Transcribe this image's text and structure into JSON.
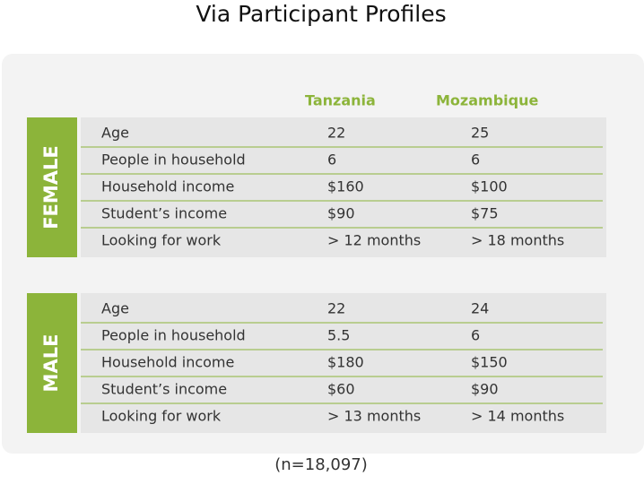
{
  "title": "Via Participant Profiles",
  "columns": [
    "Tanzania",
    "Mozambique"
  ],
  "groups": [
    {
      "label": "FEMALE",
      "rows": [
        [
          "Age",
          "22",
          "25"
        ],
        [
          "People in household",
          "6",
          "6"
        ],
        [
          "Household income",
          "$160",
          "$100"
        ],
        [
          "Student’s income",
          "$90",
          "$75"
        ],
        [
          "Looking for work",
          "> 12 months",
          "> 18 months"
        ]
      ]
    },
    {
      "label": "MALE",
      "rows": [
        [
          "Age",
          "22",
          "24"
        ],
        [
          "People in household",
          "5.5",
          "6"
        ],
        [
          "Household income",
          "$180",
          "$150"
        ],
        [
          "Student’s income",
          "$60",
          "$90"
        ],
        [
          "Looking for work",
          "> 13 months",
          "> 14 months"
        ]
      ]
    }
  ],
  "footnote": "(n=18,097)"
}
